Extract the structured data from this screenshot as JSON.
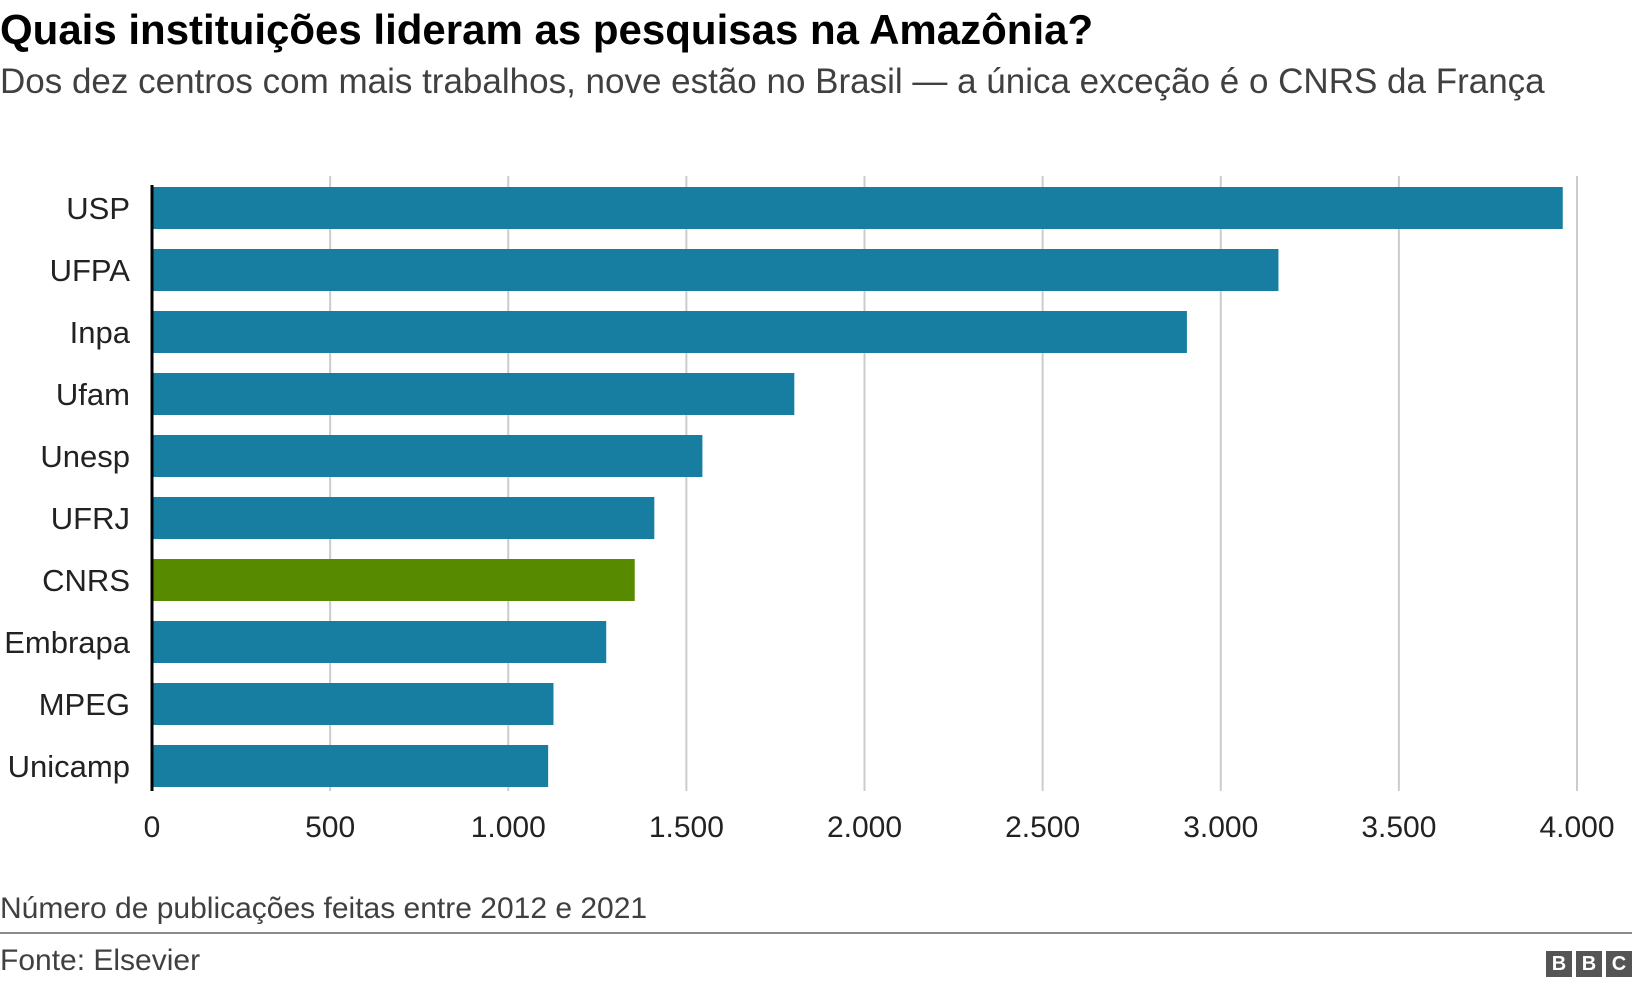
{
  "title": "Quais instituições lideram as pesquisas na Amazônia?",
  "subtitle": "Dos dez centros com mais trabalhos, nove estão no Brasil — a única exceção é o CNRS da França",
  "footnote": "Número de publicações feitas entre 2012 e 2021",
  "source": "Fonte: Elsevier",
  "logo_letters": [
    "B",
    "B",
    "C"
  ],
  "colors": {
    "bar": "#177ea1",
    "highlight": "#588a00",
    "grid": "#cccccc",
    "axis": "#000000"
  },
  "chart_data": {
    "type": "bar",
    "orientation": "horizontal",
    "categories": [
      "USP",
      "UFPA",
      "Inpa",
      "Ufam",
      "Unesp",
      "UFRJ",
      "CNRS",
      "Embrapa",
      "MPEG",
      "Unicamp"
    ],
    "values": [
      3960,
      3162,
      2905,
      1803,
      1545,
      1410,
      1355,
      1275,
      1127,
      1112
    ],
    "highlight": [
      "CNRS"
    ],
    "xlim": [
      0,
      4000
    ],
    "xticks": [
      0,
      500,
      1000,
      1500,
      2000,
      2500,
      3000,
      3500,
      4000
    ],
    "xtick_labels": [
      "0",
      "500",
      "1.000",
      "1.500",
      "2.000",
      "2.500",
      "3.000",
      "3.500",
      "4.000"
    ],
    "grid": "vertical",
    "legend": "none"
  }
}
